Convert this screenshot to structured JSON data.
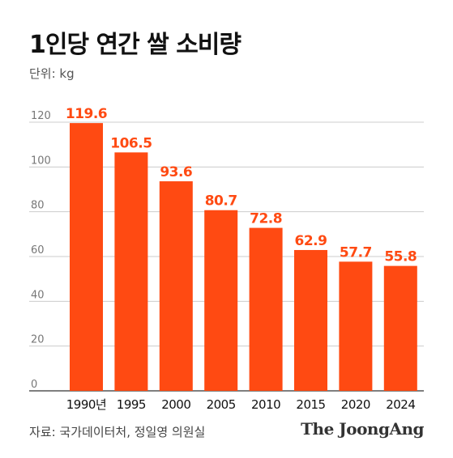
{
  "chart_data": {
    "type": "bar",
    "title": "1인당 연간 쌀 소비량",
    "unit_label": "단위: kg",
    "categories": [
      "1990년",
      "1995",
      "2000",
      "2005",
      "2010",
      "2015",
      "2020",
      "2024"
    ],
    "values": [
      119.6,
      106.5,
      93.6,
      80.7,
      72.8,
      62.9,
      57.7,
      55.8
    ],
    "data_labels": [
      "119.6",
      "106.5",
      "93.6",
      "80.7",
      "72.8",
      "62.9",
      "57.7",
      "55.8"
    ],
    "y_ticks": [
      0,
      20,
      40,
      60,
      80,
      100,
      120
    ],
    "ylim": [
      0,
      120
    ],
    "grid": true,
    "bar_color": "#FF4A12",
    "label_color": "#FF4A12"
  },
  "footer": {
    "source": "자료: 국가데이터처, 정일영 의원실",
    "brand": "The JoongAng"
  }
}
